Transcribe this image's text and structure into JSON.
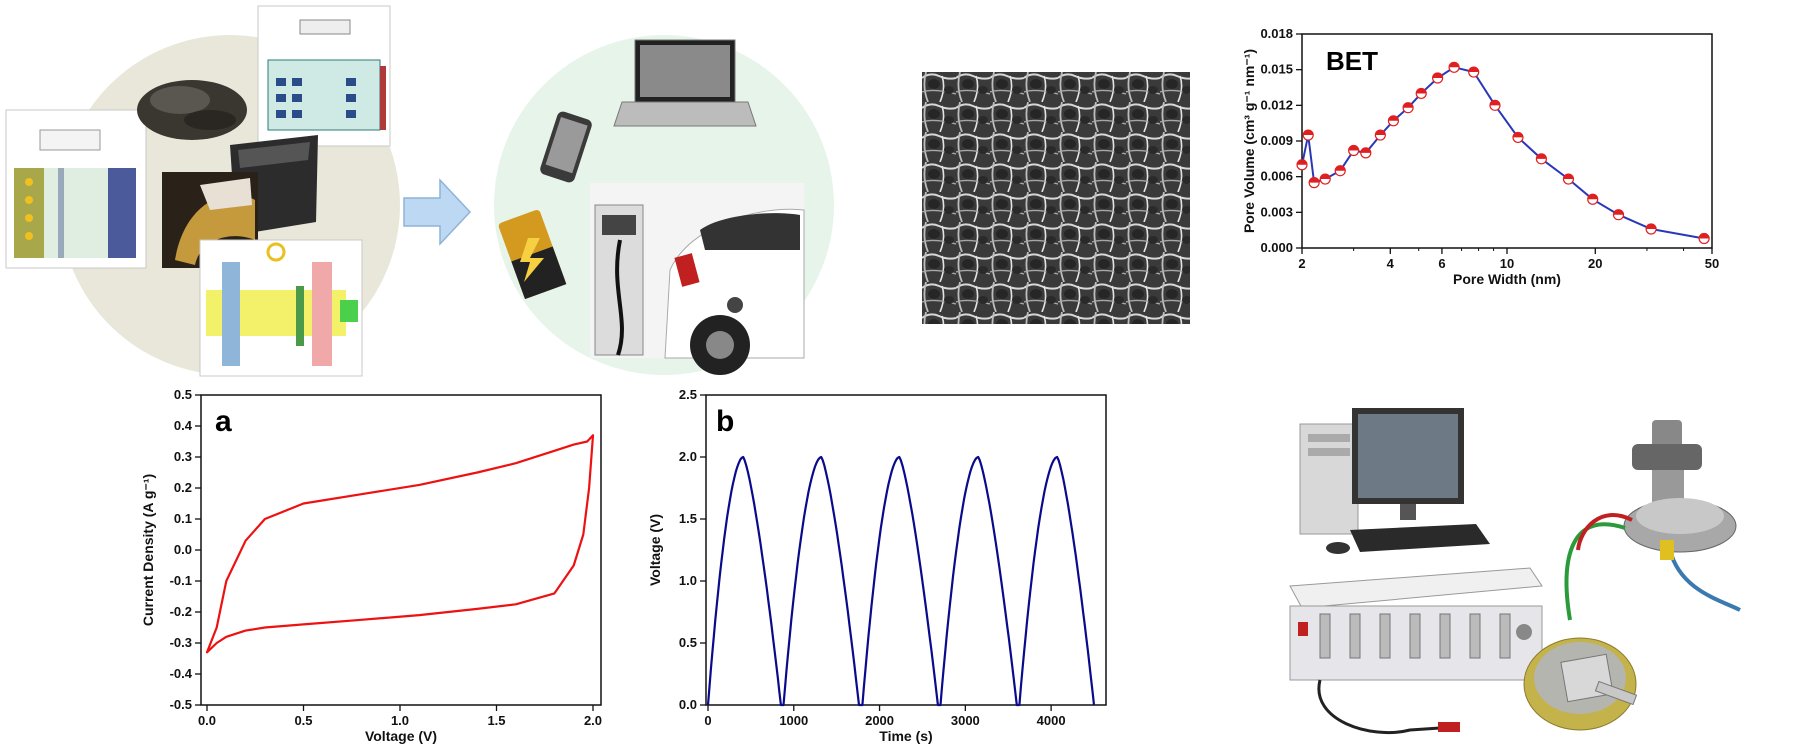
{
  "colors": {
    "cv": "#ee1111",
    "gcd": "#0a0a8c",
    "bet_line": "#2a38b8",
    "bet_marker": "#e02020",
    "circle1": "#e9e7d9",
    "circle2": "#e6f4ea",
    "arrow": "#bcd8f2"
  },
  "icons": [
    "battery-schematic",
    "carbon-powder",
    "electrode-sheet",
    "phone-icon",
    "laptop-icon",
    "battery-icon",
    "ev-charger-icon",
    "car-icon",
    "sem-image",
    "computer-icon",
    "battery-tester-icon",
    "test-cell-icon",
    "coin-cell-icon"
  ],
  "chart_data": [
    {
      "id": "bet",
      "type": "line",
      "title": "BET",
      "xlabel": "Pore Width (nm)",
      "ylabel": "Pore Volume (cm³ g⁻¹ nm⁻¹)",
      "xscale": "log",
      "xlim": [
        2,
        50
      ],
      "ylim": [
        0,
        0.018
      ],
      "xticks": [
        2,
        4,
        6,
        10,
        20,
        50
      ],
      "yticks": [
        "0.000",
        "0.003",
        "0.006",
        "0.009",
        "0.012",
        "0.015",
        "0.018"
      ],
      "x": [
        2.0,
        2.1,
        2.2,
        2.4,
        2.7,
        3.0,
        3.3,
        3.7,
        4.1,
        4.6,
        5.1,
        5.8,
        6.6,
        7.7,
        9.1,
        10.9,
        13.1,
        16.2,
        19.6,
        24.0,
        31.0,
        47.0
      ],
      "y": [
        0.007,
        0.0095,
        0.0055,
        0.0058,
        0.0065,
        0.0082,
        0.008,
        0.0095,
        0.0107,
        0.0118,
        0.013,
        0.0143,
        0.0152,
        0.0148,
        0.012,
        0.0093,
        0.0075,
        0.0058,
        0.0041,
        0.0028,
        0.0016,
        0.0008
      ]
    },
    {
      "id": "cv",
      "type": "line",
      "title": "a",
      "xlabel": "Voltage (V)",
      "ylabel": "Current Density (A g⁻¹)",
      "xlim": [
        0,
        2
      ],
      "ylim": [
        -0.5,
        0.5
      ],
      "xticks": [
        "0.0",
        "0.5",
        "1.0",
        "1.5",
        "2.0"
      ],
      "yticks": [
        "-0.5",
        "-0.4",
        "-0.3",
        "-0.2",
        "-0.1",
        "0.0",
        "0.1",
        "0.2",
        "0.3",
        "0.4",
        "0.5"
      ],
      "x": [
        0.0,
        0.05,
        0.1,
        0.2,
        0.3,
        0.5,
        0.8,
        1.1,
        1.4,
        1.6,
        1.8,
        1.9,
        1.97,
        2.0,
        1.98,
        1.95,
        1.9,
        1.8,
        1.6,
        1.4,
        1.1,
        0.8,
        0.5,
        0.3,
        0.2,
        0.1,
        0.05,
        0.0
      ],
      "y": [
        -0.33,
        -0.25,
        -0.1,
        0.03,
        0.1,
        0.15,
        0.18,
        0.21,
        0.25,
        0.28,
        0.32,
        0.34,
        0.35,
        0.37,
        0.2,
        0.05,
        -0.05,
        -0.14,
        -0.175,
        -0.19,
        -0.21,
        -0.225,
        -0.24,
        -0.25,
        -0.26,
        -0.28,
        -0.3,
        -0.33
      ]
    },
    {
      "id": "gcd",
      "type": "line",
      "title": "b",
      "xlabel": "Time (s)",
      "ylabel": "Voltage (V)",
      "xlim": [
        0,
        4500
      ],
      "ylim": [
        0,
        2.5
      ],
      "xticks": [
        "0",
        "1000",
        "2000",
        "3000",
        "4000"
      ],
      "yticks": [
        "0.0",
        "0.5",
        "1.0",
        "1.5",
        "2.0",
        "2.5"
      ],
      "cycles": [
        {
          "start": 0,
          "peak": 410,
          "end": 850
        },
        {
          "start": 880,
          "peak": 1320,
          "end": 1760
        },
        {
          "start": 1800,
          "peak": 2230,
          "end": 2680
        },
        {
          "start": 2710,
          "peak": 3150,
          "end": 3600
        },
        {
          "start": 3630,
          "peak": 4070,
          "end": 4500
        }
      ],
      "vmax": 2.0
    }
  ]
}
